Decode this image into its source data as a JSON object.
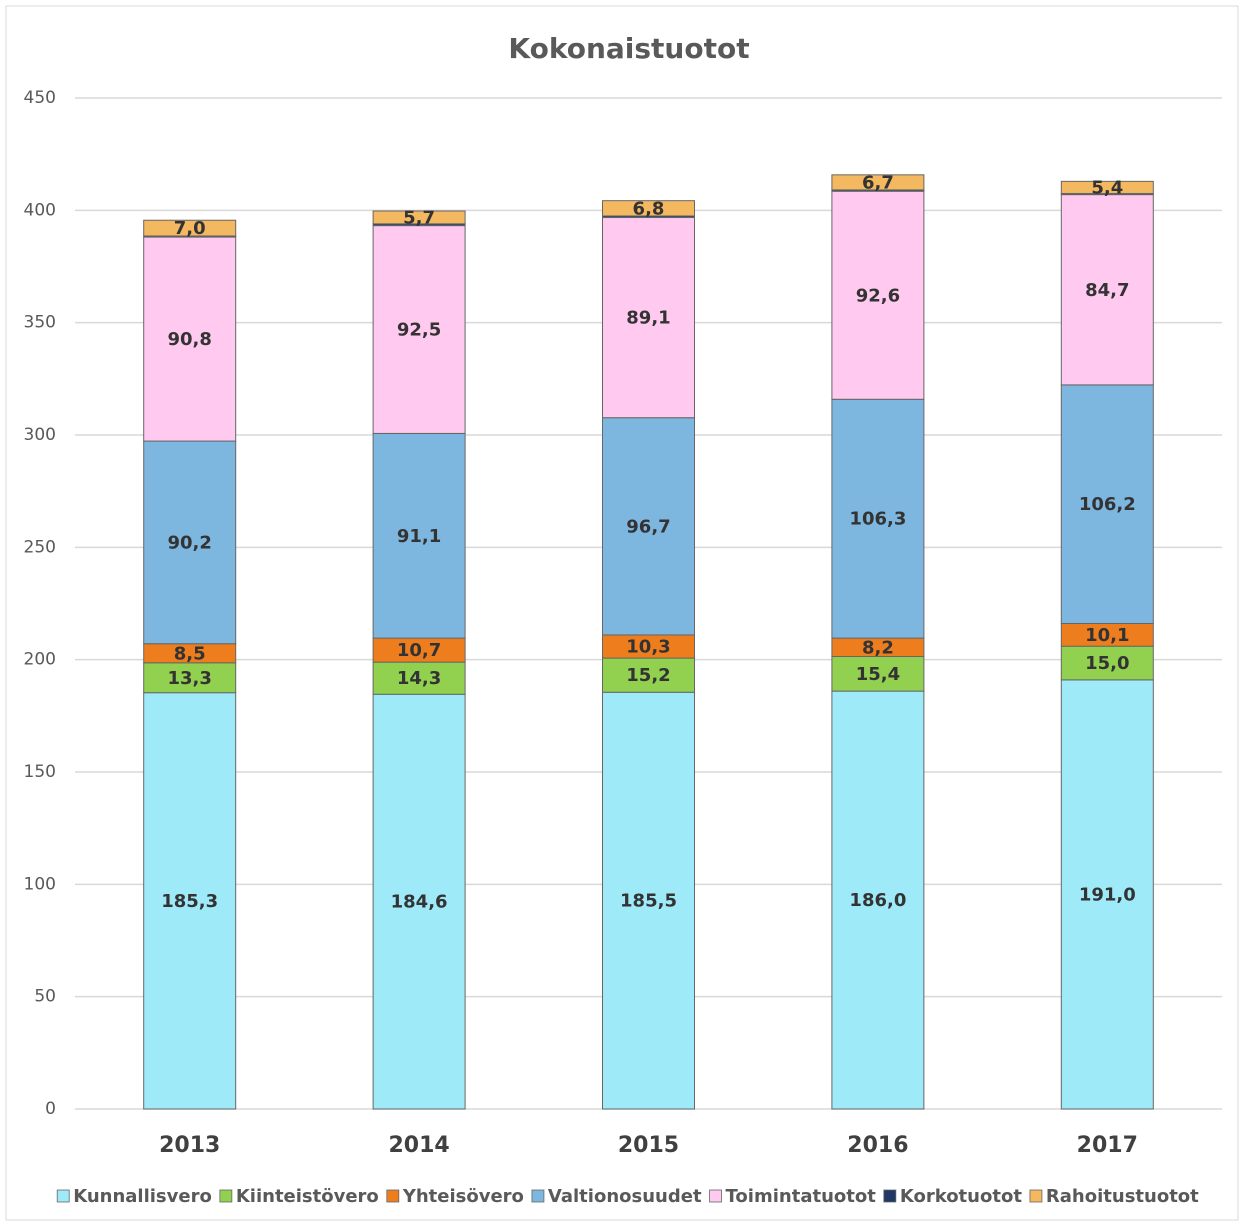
{
  "chart_data": {
    "type": "stacked_bar",
    "title": "Kokonaistuotot",
    "categories": [
      "2013",
      "2014",
      "2015",
      "2016",
      "2017"
    ],
    "ylim": [
      0,
      450
    ],
    "yticks": [
      0,
      50,
      100,
      150,
      200,
      250,
      300,
      350,
      400,
      450
    ],
    "grid": true,
    "legend": "bottom",
    "series": [
      {
        "name": "Kunnallisvero",
        "color": "#9eeaf9",
        "values": [
          185.3,
          184.6,
          185.5,
          186.0,
          191.0
        ],
        "value_labels": [
          "185,3",
          "184,6",
          "185,5",
          "186,0",
          "191,0"
        ]
      },
      {
        "name": "Kiinteistövero",
        "color": "#92d050",
        "values": [
          13.3,
          14.3,
          15.2,
          15.4,
          15.0
        ],
        "value_labels": [
          "13,3",
          "14,3",
          "15,2",
          "15,4",
          "15,0"
        ]
      },
      {
        "name": "Yhteisövero",
        "color": "#ee7d1e",
        "values": [
          8.5,
          10.7,
          10.3,
          8.2,
          10.1
        ],
        "value_labels": [
          "8,5",
          "10,7",
          "10,3",
          "8,2",
          "10,1"
        ]
      },
      {
        "name": "Valtionosuudet",
        "color": "#7db6df",
        "values": [
          90.2,
          91.1,
          96.7,
          106.3,
          106.2
        ],
        "value_labels": [
          "90,2",
          "91,1",
          "96,7",
          "106,3",
          "106,2"
        ]
      },
      {
        "name": "Toimintatuotot",
        "color": "#ffc9f0",
        "values": [
          90.8,
          92.5,
          89.1,
          92.6,
          84.7
        ],
        "value_labels": [
          "90,8",
          "92,5",
          "89,1",
          "92,6",
          "84,7"
        ]
      },
      {
        "name": "Korkotuotot",
        "color": "#1f3864",
        "values": [
          0.5,
          0.8,
          0.7,
          0.6,
          0.5
        ]
      },
      {
        "name": "Rahoitustuotot",
        "color": "#f4b860",
        "values": [
          7.0,
          5.7,
          6.8,
          6.7,
          5.4
        ],
        "value_labels": [
          "7,0",
          "5,7",
          "6,8",
          "6,7",
          "5,4"
        ]
      }
    ]
  }
}
